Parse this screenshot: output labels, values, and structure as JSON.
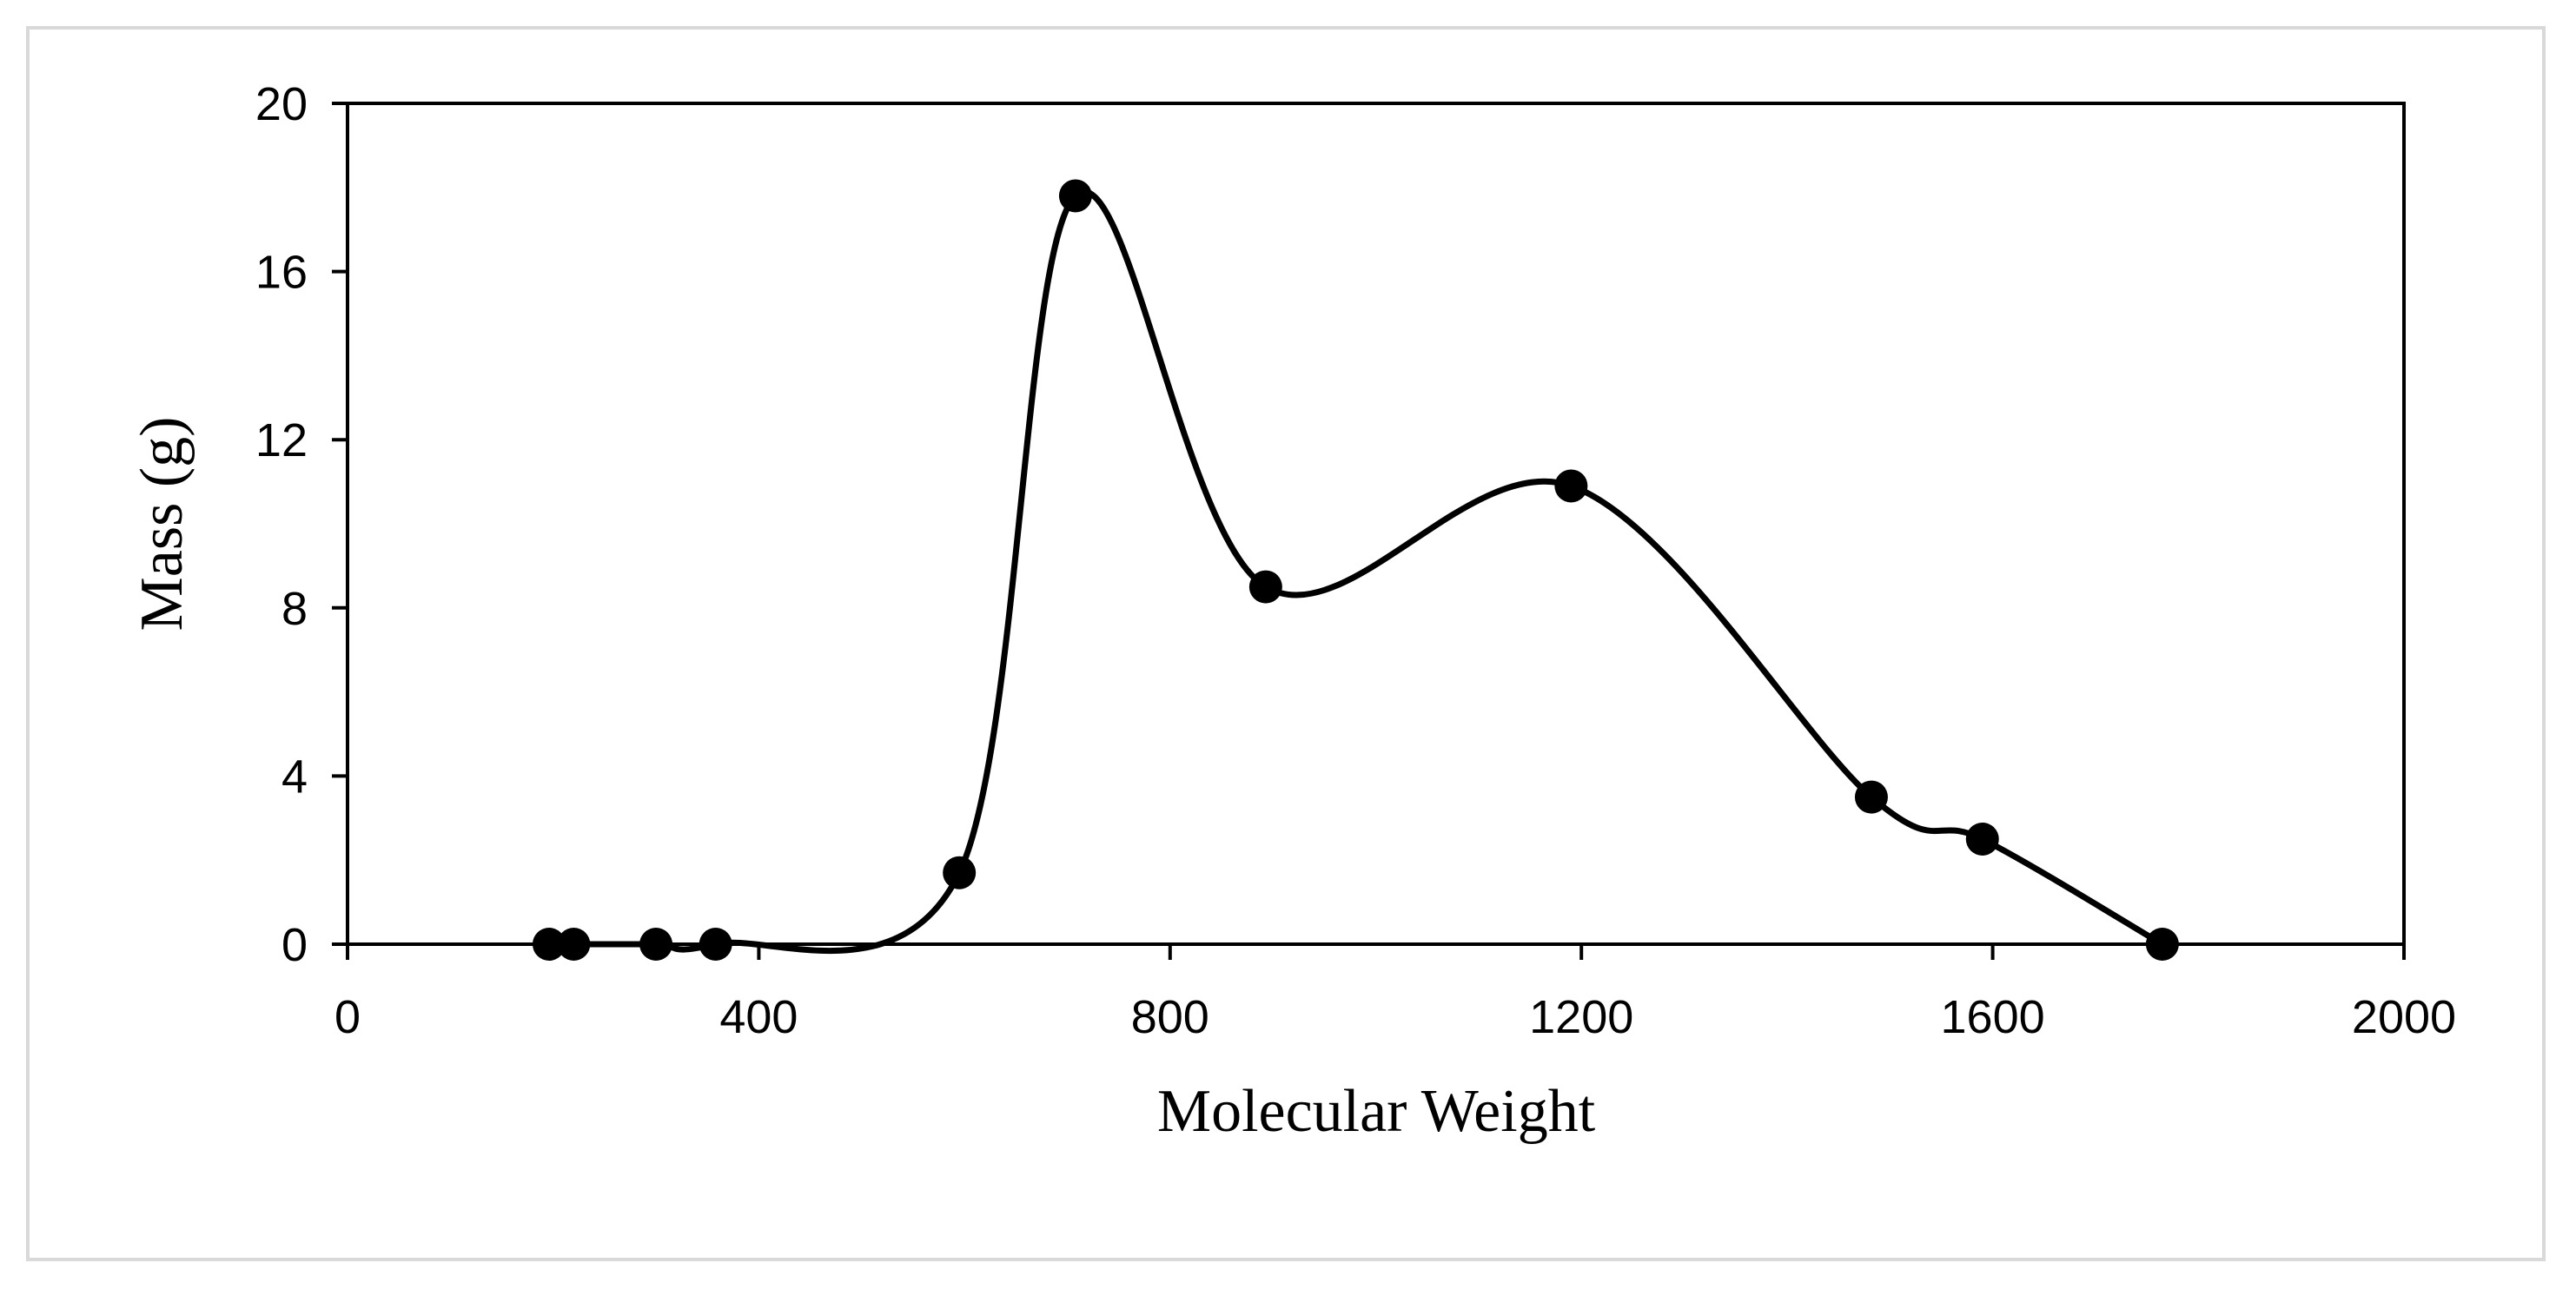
{
  "chart_data": {
    "type": "scatter",
    "xlabel": "Molecular Weight",
    "ylabel": "Mass (g)",
    "xlim": [
      0,
      2000
    ],
    "ylim": [
      0,
      20
    ],
    "x_ticks": [
      0,
      400,
      800,
      1200,
      1600,
      2000
    ],
    "y_ticks": [
      0,
      4,
      8,
      12,
      16,
      20
    ],
    "grid": false,
    "marker_color": "#000000",
    "line_color": "#000000",
    "line_style": "smoothed",
    "series": [
      {
        "x": [
          196,
          220,
          300,
          358,
          595,
          708,
          893,
          1190,
          1482,
          1590,
          1765
        ],
        "y": [
          0,
          0,
          0,
          0,
          1.7,
          17.8,
          8.5,
          10.9,
          3.5,
          2.5,
          0
        ]
      }
    ]
  }
}
